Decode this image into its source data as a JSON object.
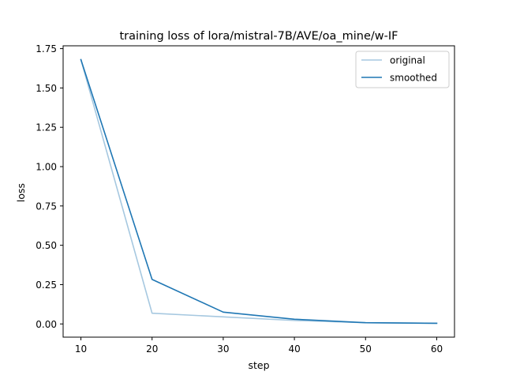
{
  "chart_data": {
    "type": "line",
    "title": "training loss of lora/mistral-7B/AVE/oa_mine/w-IF",
    "xlabel": "step",
    "ylabel": "loss",
    "xlim": [
      7.5,
      62.5
    ],
    "ylim": [
      -0.084,
      1.768
    ],
    "x_ticks": [
      10,
      20,
      30,
      40,
      50,
      60
    ],
    "y_ticks": [
      0.0,
      0.25,
      0.5,
      0.75,
      1.0,
      1.25,
      1.5,
      1.75
    ],
    "y_tick_labels": [
      "0.00",
      "0.25",
      "0.50",
      "0.75",
      "1.00",
      "1.25",
      "1.50",
      "1.75"
    ],
    "grid": false,
    "legend_position": "top-right",
    "x": [
      10,
      20,
      30,
      40,
      50,
      60
    ],
    "series": [
      {
        "name": "original",
        "values": [
          1.68,
          0.068,
          0.045,
          0.022,
          0.008,
          0.004
        ],
        "color": "#a6c8e0"
      },
      {
        "name": "smoothed",
        "values": [
          1.68,
          0.283,
          0.075,
          0.03,
          0.008,
          0.004
        ],
        "color": "#1f77b4"
      }
    ]
  }
}
